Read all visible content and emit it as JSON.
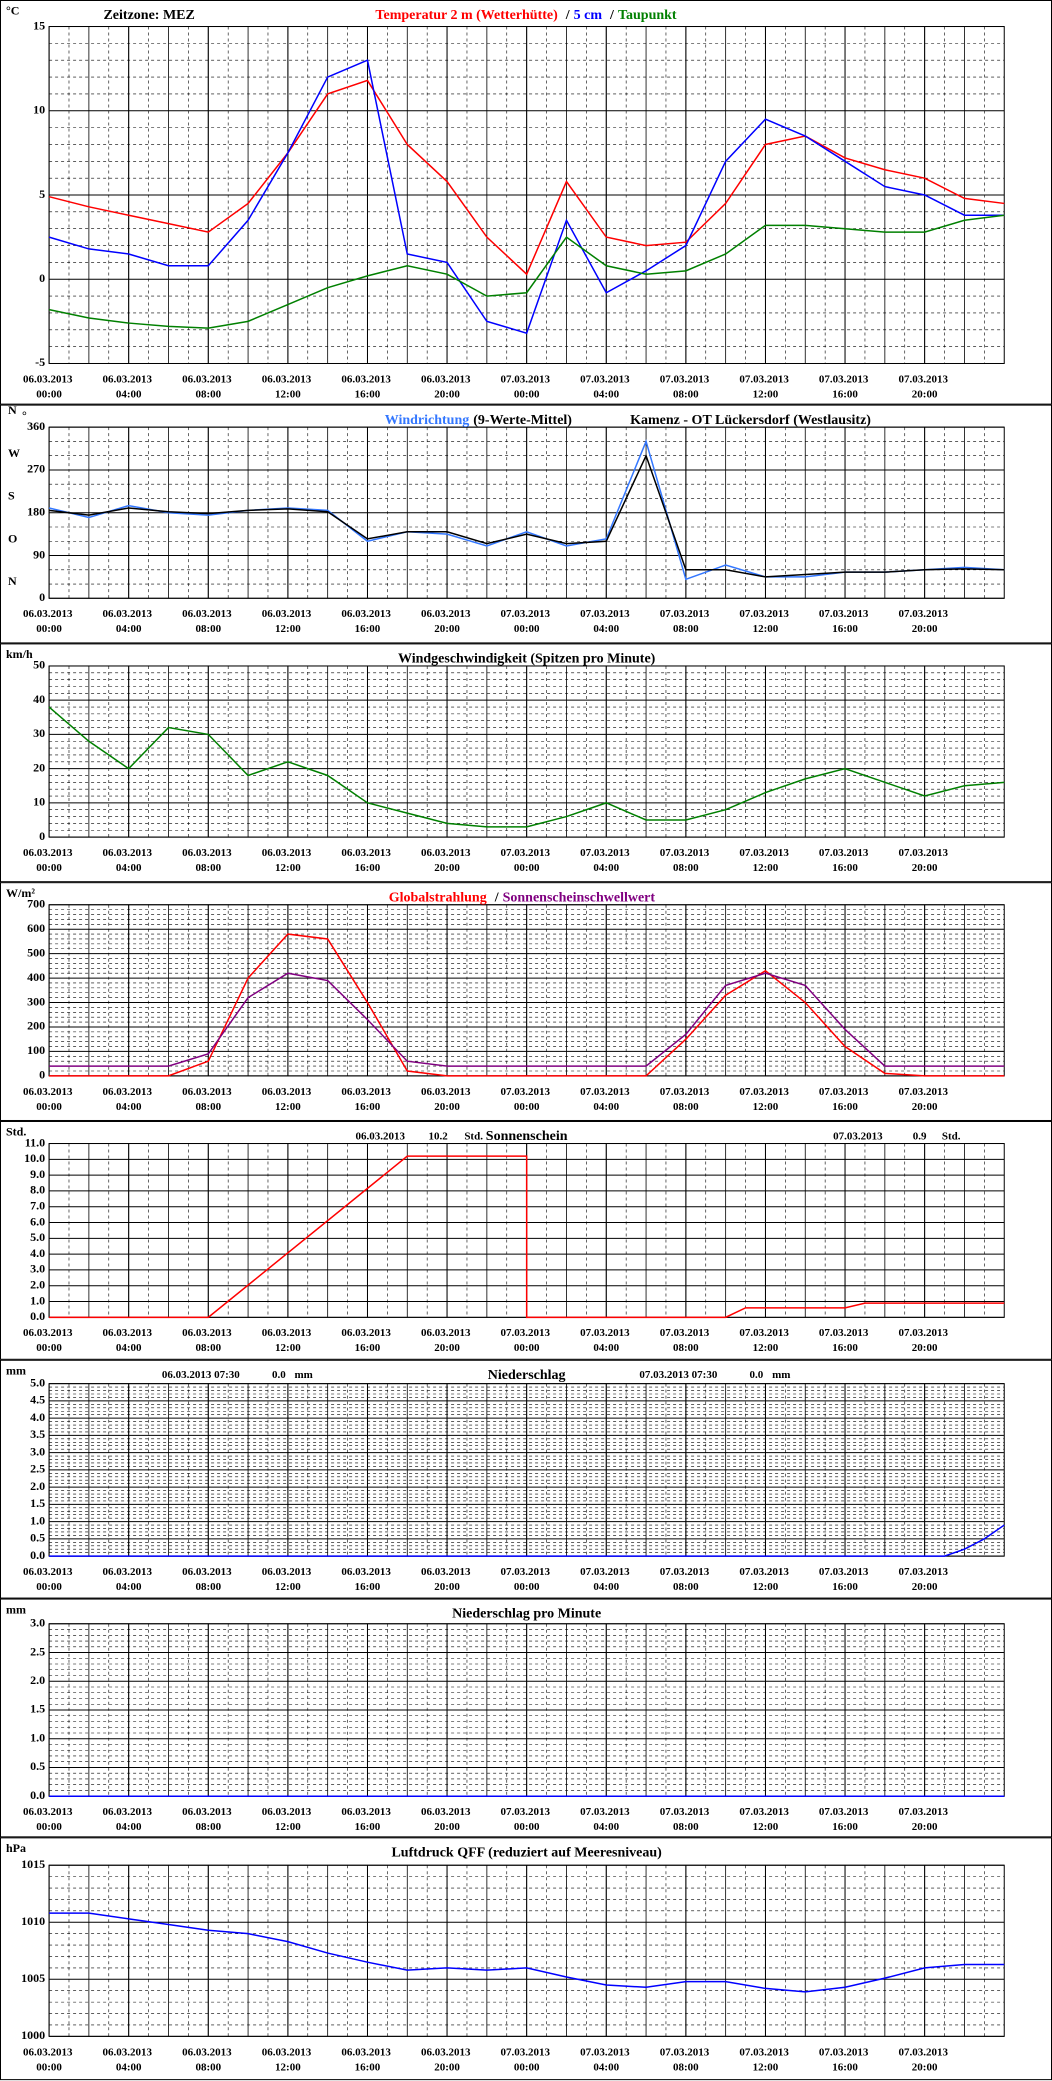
{
  "chart_data": [
    {
      "type": "line",
      "unit": "°C",
      "timezone": "Zeitzone: MEZ",
      "legend_separator": "/",
      "x": [
        "06.03.2013 00:00",
        "06.03.2013 02:00",
        "06.03.2013 04:00",
        "06.03.2013 06:00",
        "06.03.2013 08:00",
        "06.03.2013 10:00",
        "06.03.2013 12:00",
        "06.03.2013 14:00",
        "06.03.2013 16:00",
        "06.03.2013 18:00",
        "06.03.2013 20:00",
        "06.03.2013 22:00",
        "07.03.2013 00:00",
        "07.03.2013 02:00",
        "07.03.2013 04:00",
        "07.03.2013 06:00",
        "07.03.2013 08:00",
        "07.03.2013 10:00",
        "07.03.2013 12:00",
        "07.03.2013 14:00",
        "07.03.2013 16:00",
        "07.03.2013 18:00",
        "07.03.2013 20:00",
        "07.03.2013 22:00",
        "08.03.2013 00:00"
      ],
      "xlim": [
        "06.03.2013 00:00",
        "08.03.2013 00:00"
      ],
      "xticks": [
        "06.03.2013 00:00",
        "06.03.2013 04:00",
        "06.03.2013 08:00",
        "06.03.2013 12:00",
        "06.03.2013 16:00",
        "06.03.2013 20:00",
        "07.03.2013 00:00",
        "07.03.2013 04:00",
        "07.03.2013 08:00",
        "07.03.2013 12:00",
        "07.03.2013 16:00",
        "07.03.2013 20:00"
      ],
      "ylim": [
        -5,
        15
      ],
      "yticks": [
        -5,
        0,
        5,
        10,
        15
      ],
      "series": [
        {
          "name": "Temperatur 2 m (Wetterhütte)",
          "color": "#ff0000",
          "values": [
            4.9,
            4.3,
            3.8,
            3.3,
            2.8,
            4.5,
            7.5,
            11,
            11.8,
            8,
            5.8,
            2.5,
            0.3,
            5.8,
            2.5,
            2,
            2.2,
            4.5,
            8,
            8.5,
            7.2,
            6.5,
            6,
            4.8,
            4.5
          ]
        },
        {
          "name": "5 cm",
          "color": "#0000ff",
          "values": [
            2.5,
            1.8,
            1.5,
            0.8,
            0.8,
            3.5,
            7.5,
            12,
            13,
            1.5,
            1,
            -2.5,
            -3.2,
            3.5,
            -0.8,
            0.5,
            2,
            7,
            9.5,
            8.5,
            7,
            5.5,
            5,
            3.8,
            3.8
          ]
        },
        {
          "name": "Taupunkt",
          "color": "#008000",
          "values": [
            -1.8,
            -2.3,
            -2.6,
            -2.8,
            -2.9,
            -2.5,
            -1.5,
            -0.5,
            0.2,
            0.8,
            0.3,
            -1,
            -0.8,
            2.5,
            0.8,
            0.3,
            0.5,
            1.5,
            3.2,
            3.2,
            3,
            2.8,
            2.8,
            3.5,
            3.8
          ]
        }
      ]
    },
    {
      "type": "line",
      "unit": "°",
      "station": "Kamenz - OT Lückersdorf (Westlausitz)",
      "x": [
        "06.03.2013 00:00",
        "06.03.2013 02:00",
        "06.03.2013 04:00",
        "06.03.2013 06:00",
        "06.03.2013 08:00",
        "06.03.2013 10:00",
        "06.03.2013 12:00",
        "06.03.2013 14:00",
        "06.03.2013 16:00",
        "06.03.2013 18:00",
        "06.03.2013 20:00",
        "06.03.2013 22:00",
        "07.03.2013 00:00",
        "07.03.2013 02:00",
        "07.03.2013 04:00",
        "07.03.2013 06:00",
        "07.03.2013 08:00",
        "07.03.2013 10:00",
        "07.03.2013 12:00",
        "07.03.2013 14:00",
        "07.03.2013 16:00",
        "07.03.2013 18:00",
        "07.03.2013 20:00",
        "07.03.2013 22:00",
        "08.03.2013 00:00"
      ],
      "xlim": [
        "06.03.2013 00:00",
        "08.03.2013 00:00"
      ],
      "xticks": [
        "06.03.2013 00:00",
        "06.03.2013 04:00",
        "06.03.2013 08:00",
        "06.03.2013 12:00",
        "06.03.2013 16:00",
        "06.03.2013 20:00",
        "07.03.2013 00:00",
        "07.03.2013 04:00",
        "07.03.2013 08:00",
        "07.03.2013 12:00",
        "07.03.2013 16:00",
        "07.03.2013 20:00"
      ],
      "ylim": [
        0,
        360
      ],
      "yticks": [
        0,
        90,
        180,
        270,
        360
      ],
      "direction_labels": [
        "N",
        "O",
        "S",
        "W",
        "N"
      ],
      "series": [
        {
          "name": "Windrichtung",
          "color": "#3377ff",
          "values": [
            190,
            170,
            195,
            180,
            175,
            185,
            190,
            185,
            120,
            140,
            135,
            110,
            140,
            110,
            125,
            330,
            40,
            70,
            45,
            45,
            55,
            55,
            60,
            65,
            60
          ]
        },
        {
          "name": "(9-Werte-Mittel)",
          "color": "#000000",
          "values": [
            185,
            175,
            190,
            182,
            178,
            185,
            188,
            182,
            125,
            140,
            140,
            115,
            135,
            115,
            120,
            300,
            60,
            60,
            45,
            50,
            55,
            55,
            60,
            62,
            60
          ]
        }
      ]
    },
    {
      "type": "line",
      "unit": "km/h",
      "title": "Windgeschwindigkeit (Spitzen pro Minute)",
      "x": [
        "06.03.2013 00:00",
        "06.03.2013 02:00",
        "06.03.2013 04:00",
        "06.03.2013 06:00",
        "06.03.2013 08:00",
        "06.03.2013 10:00",
        "06.03.2013 12:00",
        "06.03.2013 14:00",
        "06.03.2013 16:00",
        "06.03.2013 18:00",
        "06.03.2013 20:00",
        "06.03.2013 22:00",
        "07.03.2013 00:00",
        "07.03.2013 02:00",
        "07.03.2013 04:00",
        "07.03.2013 06:00",
        "07.03.2013 08:00",
        "07.03.2013 10:00",
        "07.03.2013 12:00",
        "07.03.2013 14:00",
        "07.03.2013 16:00",
        "07.03.2013 18:00",
        "07.03.2013 20:00",
        "07.03.2013 22:00",
        "08.03.2013 00:00"
      ],
      "xlim": [
        "06.03.2013 00:00",
        "08.03.2013 00:00"
      ],
      "xticks": [
        "06.03.2013 00:00",
        "06.03.2013 04:00",
        "06.03.2013 08:00",
        "06.03.2013 12:00",
        "06.03.2013 16:00",
        "06.03.2013 20:00",
        "07.03.2013 00:00",
        "07.03.2013 04:00",
        "07.03.2013 08:00",
        "07.03.2013 12:00",
        "07.03.2013 16:00",
        "07.03.2013 20:00"
      ],
      "ylim": [
        0,
        50
      ],
      "yticks": [
        0,
        10,
        20,
        30,
        40,
        50
      ],
      "color": "#008000",
      "values": [
        38,
        28,
        20,
        32,
        30,
        18,
        22,
        18,
        10,
        7,
        4,
        3,
        3,
        6,
        10,
        5,
        5,
        8,
        13,
        17,
        20,
        16,
        12,
        15,
        16
      ]
    },
    {
      "type": "line",
      "unit": "W/m²",
      "legend_separator": "/",
      "x": [
        "06.03.2013 00:00",
        "06.03.2013 02:00",
        "06.03.2013 04:00",
        "06.03.2013 06:00",
        "06.03.2013 08:00",
        "06.03.2013 10:00",
        "06.03.2013 12:00",
        "06.03.2013 14:00",
        "06.03.2013 16:00",
        "06.03.2013 18:00",
        "06.03.2013 20:00",
        "06.03.2013 22:00",
        "07.03.2013 00:00",
        "07.03.2013 02:00",
        "07.03.2013 04:00",
        "07.03.2013 06:00",
        "07.03.2013 08:00",
        "07.03.2013 10:00",
        "07.03.2013 12:00",
        "07.03.2013 14:00",
        "07.03.2013 16:00",
        "07.03.2013 18:00",
        "07.03.2013 20:00",
        "07.03.2013 22:00",
        "08.03.2013 00:00"
      ],
      "xlim": [
        "06.03.2013 00:00",
        "08.03.2013 00:00"
      ],
      "xticks": [
        "06.03.2013 00:00",
        "06.03.2013 04:00",
        "06.03.2013 08:00",
        "06.03.2013 12:00",
        "06.03.2013 16:00",
        "06.03.2013 20:00",
        "07.03.2013 00:00",
        "07.03.2013 04:00",
        "07.03.2013 08:00",
        "07.03.2013 12:00",
        "07.03.2013 16:00",
        "07.03.2013 20:00"
      ],
      "ylim": [
        0,
        700
      ],
      "yticks": [
        0,
        100,
        200,
        300,
        400,
        500,
        600,
        700
      ],
      "series": [
        {
          "name": "Globalstrahlung",
          "color": "#ff0000",
          "values": [
            0,
            0,
            0,
            0,
            60,
            400,
            580,
            560,
            300,
            20,
            0,
            0,
            0,
            0,
            0,
            0,
            150,
            330,
            430,
            300,
            120,
            10,
            0,
            0,
            0
          ]
        },
        {
          "name": "Sonnenscheinschwellwert",
          "color": "#800080",
          "values": [
            40,
            40,
            40,
            40,
            90,
            320,
            420,
            390,
            230,
            60,
            40,
            40,
            40,
            40,
            40,
            40,
            170,
            370,
            420,
            370,
            190,
            40,
            40,
            40,
            40
          ]
        }
      ]
    },
    {
      "type": "line",
      "unit": "Std.",
      "title": "Sonnenschein",
      "summary": [
        [
          "06.03.2013",
          "10.2",
          "Std."
        ],
        [
          "07.03.2013",
          "0.9",
          "Std."
        ]
      ],
      "x": [
        "06.03.2013 00:00",
        "06.03.2013 08:00",
        "06.03.2013 18:00",
        "07.03.2013 00:00",
        "07.03.2013 00:00",
        "07.03.2013 10:00",
        "07.03.2013 11:00",
        "07.03.2013 16:00",
        "07.03.2013 17:00",
        "08.03.2013 00:00"
      ],
      "xlim": [
        "06.03.2013 00:00",
        "08.03.2013 00:00"
      ],
      "xticks": [
        "06.03.2013 00:00",
        "06.03.2013 04:00",
        "06.03.2013 08:00",
        "06.03.2013 12:00",
        "06.03.2013 16:00",
        "06.03.2013 20:00",
        "07.03.2013 00:00",
        "07.03.2013 04:00",
        "07.03.2013 08:00",
        "07.03.2013 12:00",
        "07.03.2013 16:00",
        "07.03.2013 20:00"
      ],
      "ylim": [
        0,
        11
      ],
      "yticks": [
        {
          "value": 0,
          "label": "0.0"
        },
        {
          "value": 1,
          "label": "1.0"
        },
        {
          "value": 2,
          "label": "2.0"
        },
        {
          "value": 3,
          "label": "3.0"
        },
        {
          "value": 4,
          "label": "4.0"
        },
        {
          "value": 5,
          "label": "5.0"
        },
        {
          "value": 6,
          "label": "6.0"
        },
        {
          "value": 7,
          "label": "7.0"
        },
        {
          "value": 8,
          "label": "8.0"
        },
        {
          "value": 9,
          "label": "9.0"
        },
        {
          "value": 10,
          "label": "10.0"
        },
        {
          "value": 11,
          "label": "11.0"
        }
      ],
      "color": "#ff0000",
      "values": [
        0,
        0,
        10.2,
        10.2,
        0,
        0,
        0.6,
        0.6,
        0.9,
        0.9
      ]
    },
    {
      "type": "line",
      "unit": "mm",
      "title": "Niederschlag",
      "summary": [
        [
          "06.03.2013 07:30",
          "0.0",
          "mm"
        ],
        [
          "07.03.2013 07:30",
          "0.0",
          "mm"
        ]
      ],
      "x": [
        "06.03.2013 00:00",
        "07.03.2013 21:00",
        "07.03.2013 22:00",
        "07.03.2013 23:00",
        "08.03.2013 00:00"
      ],
      "xlim": [
        "06.03.2013 00:00",
        "08.03.2013 00:00"
      ],
      "xticks": [
        "06.03.2013 00:00",
        "06.03.2013 04:00",
        "06.03.2013 08:00",
        "06.03.2013 12:00",
        "06.03.2013 16:00",
        "06.03.2013 20:00",
        "07.03.2013 00:00",
        "07.03.2013 04:00",
        "07.03.2013 08:00",
        "07.03.2013 12:00",
        "07.03.2013 16:00",
        "07.03.2013 20:00"
      ],
      "ylim": [
        0,
        5
      ],
      "yticks": [
        {
          "value": 0,
          "label": "0.0"
        },
        {
          "value": 0.5,
          "label": "0.5"
        },
        {
          "value": 1,
          "label": "1.0"
        },
        {
          "value": 1.5,
          "label": "1.5"
        },
        {
          "value": 2,
          "label": "2.0"
        },
        {
          "value": 2.5,
          "label": "2.5"
        },
        {
          "value": 3,
          "label": "3.0"
        },
        {
          "value": 3.5,
          "label": "3.5"
        },
        {
          "value": 4,
          "label": "4.0"
        },
        {
          "value": 4.5,
          "label": "4.5"
        },
        {
          "value": 5,
          "label": "5.0"
        }
      ],
      "color": "#0000ff",
      "values": [
        0,
        0,
        0.2,
        0.5,
        0.9
      ]
    },
    {
      "type": "line",
      "unit": "mm",
      "title": "Niederschlag pro Minute",
      "x": [
        "06.03.2013 00:00",
        "08.03.2013 00:00"
      ],
      "xlim": [
        "06.03.2013 00:00",
        "08.03.2013 00:00"
      ],
      "xticks": [
        "06.03.2013 00:00",
        "06.03.2013 04:00",
        "06.03.2013 08:00",
        "06.03.2013 12:00",
        "06.03.2013 16:00",
        "06.03.2013 20:00",
        "07.03.2013 00:00",
        "07.03.2013 04:00",
        "07.03.2013 08:00",
        "07.03.2013 12:00",
        "07.03.2013 16:00",
        "07.03.2013 20:00"
      ],
      "ylim": [
        0,
        3
      ],
      "yticks": [
        {
          "value": 0,
          "label": "0.0"
        },
        {
          "value": 0.5,
          "label": "0.5"
        },
        {
          "value": 1,
          "label": "1.0"
        },
        {
          "value": 1.5,
          "label": "1.5"
        },
        {
          "value": 2,
          "label": "2.0"
        },
        {
          "value": 2.5,
          "label": "2.5"
        },
        {
          "value": 3,
          "label": "3.0"
        }
      ],
      "color": "#0000ff",
      "values": [
        0,
        0
      ]
    },
    {
      "type": "line",
      "unit": "hPa",
      "title": "Luftdruck QFF (reduziert auf Meeresniveau)",
      "x": [
        "06.03.2013 00:00",
        "06.03.2013 02:00",
        "06.03.2013 04:00",
        "06.03.2013 06:00",
        "06.03.2013 08:00",
        "06.03.2013 10:00",
        "06.03.2013 12:00",
        "06.03.2013 14:00",
        "06.03.2013 16:00",
        "06.03.2013 18:00",
        "06.03.2013 20:00",
        "06.03.2013 22:00",
        "07.03.2013 00:00",
        "07.03.2013 02:00",
        "07.03.2013 04:00",
        "07.03.2013 06:00",
        "07.03.2013 08:00",
        "07.03.2013 10:00",
        "07.03.2013 12:00",
        "07.03.2013 14:00",
        "07.03.2013 16:00",
        "07.03.2013 18:00",
        "07.03.2013 20:00",
        "07.03.2013 22:00",
        "08.03.2013 00:00"
      ],
      "xlim": [
        "06.03.2013 00:00",
        "08.03.2013 00:00"
      ],
      "xticks": [
        "06.03.2013 00:00",
        "06.03.2013 04:00",
        "06.03.2013 08:00",
        "06.03.2013 12:00",
        "06.03.2013 16:00",
        "06.03.2013 20:00",
        "07.03.2013 00:00",
        "07.03.2013 04:00",
        "07.03.2013 08:00",
        "07.03.2013 12:00",
        "07.03.2013 16:00",
        "07.03.2013 20:00"
      ],
      "ylim": [
        1000,
        1015
      ],
      "yticks": [
        1000,
        1005,
        1010,
        1015
      ],
      "color": "#0000ff",
      "values": [
        1010.8,
        1010.8,
        1010.3,
        1009.8,
        1009.3,
        1009,
        1008.3,
        1007.3,
        1006.5,
        1005.8,
        1006,
        1005.8,
        1006,
        1005.2,
        1004.5,
        1004.3,
        1004.8,
        1004.8,
        1004.2,
        1003.9,
        1004.3,
        1005.1,
        1006,
        1006.3,
        1006.3
      ]
    }
  ]
}
